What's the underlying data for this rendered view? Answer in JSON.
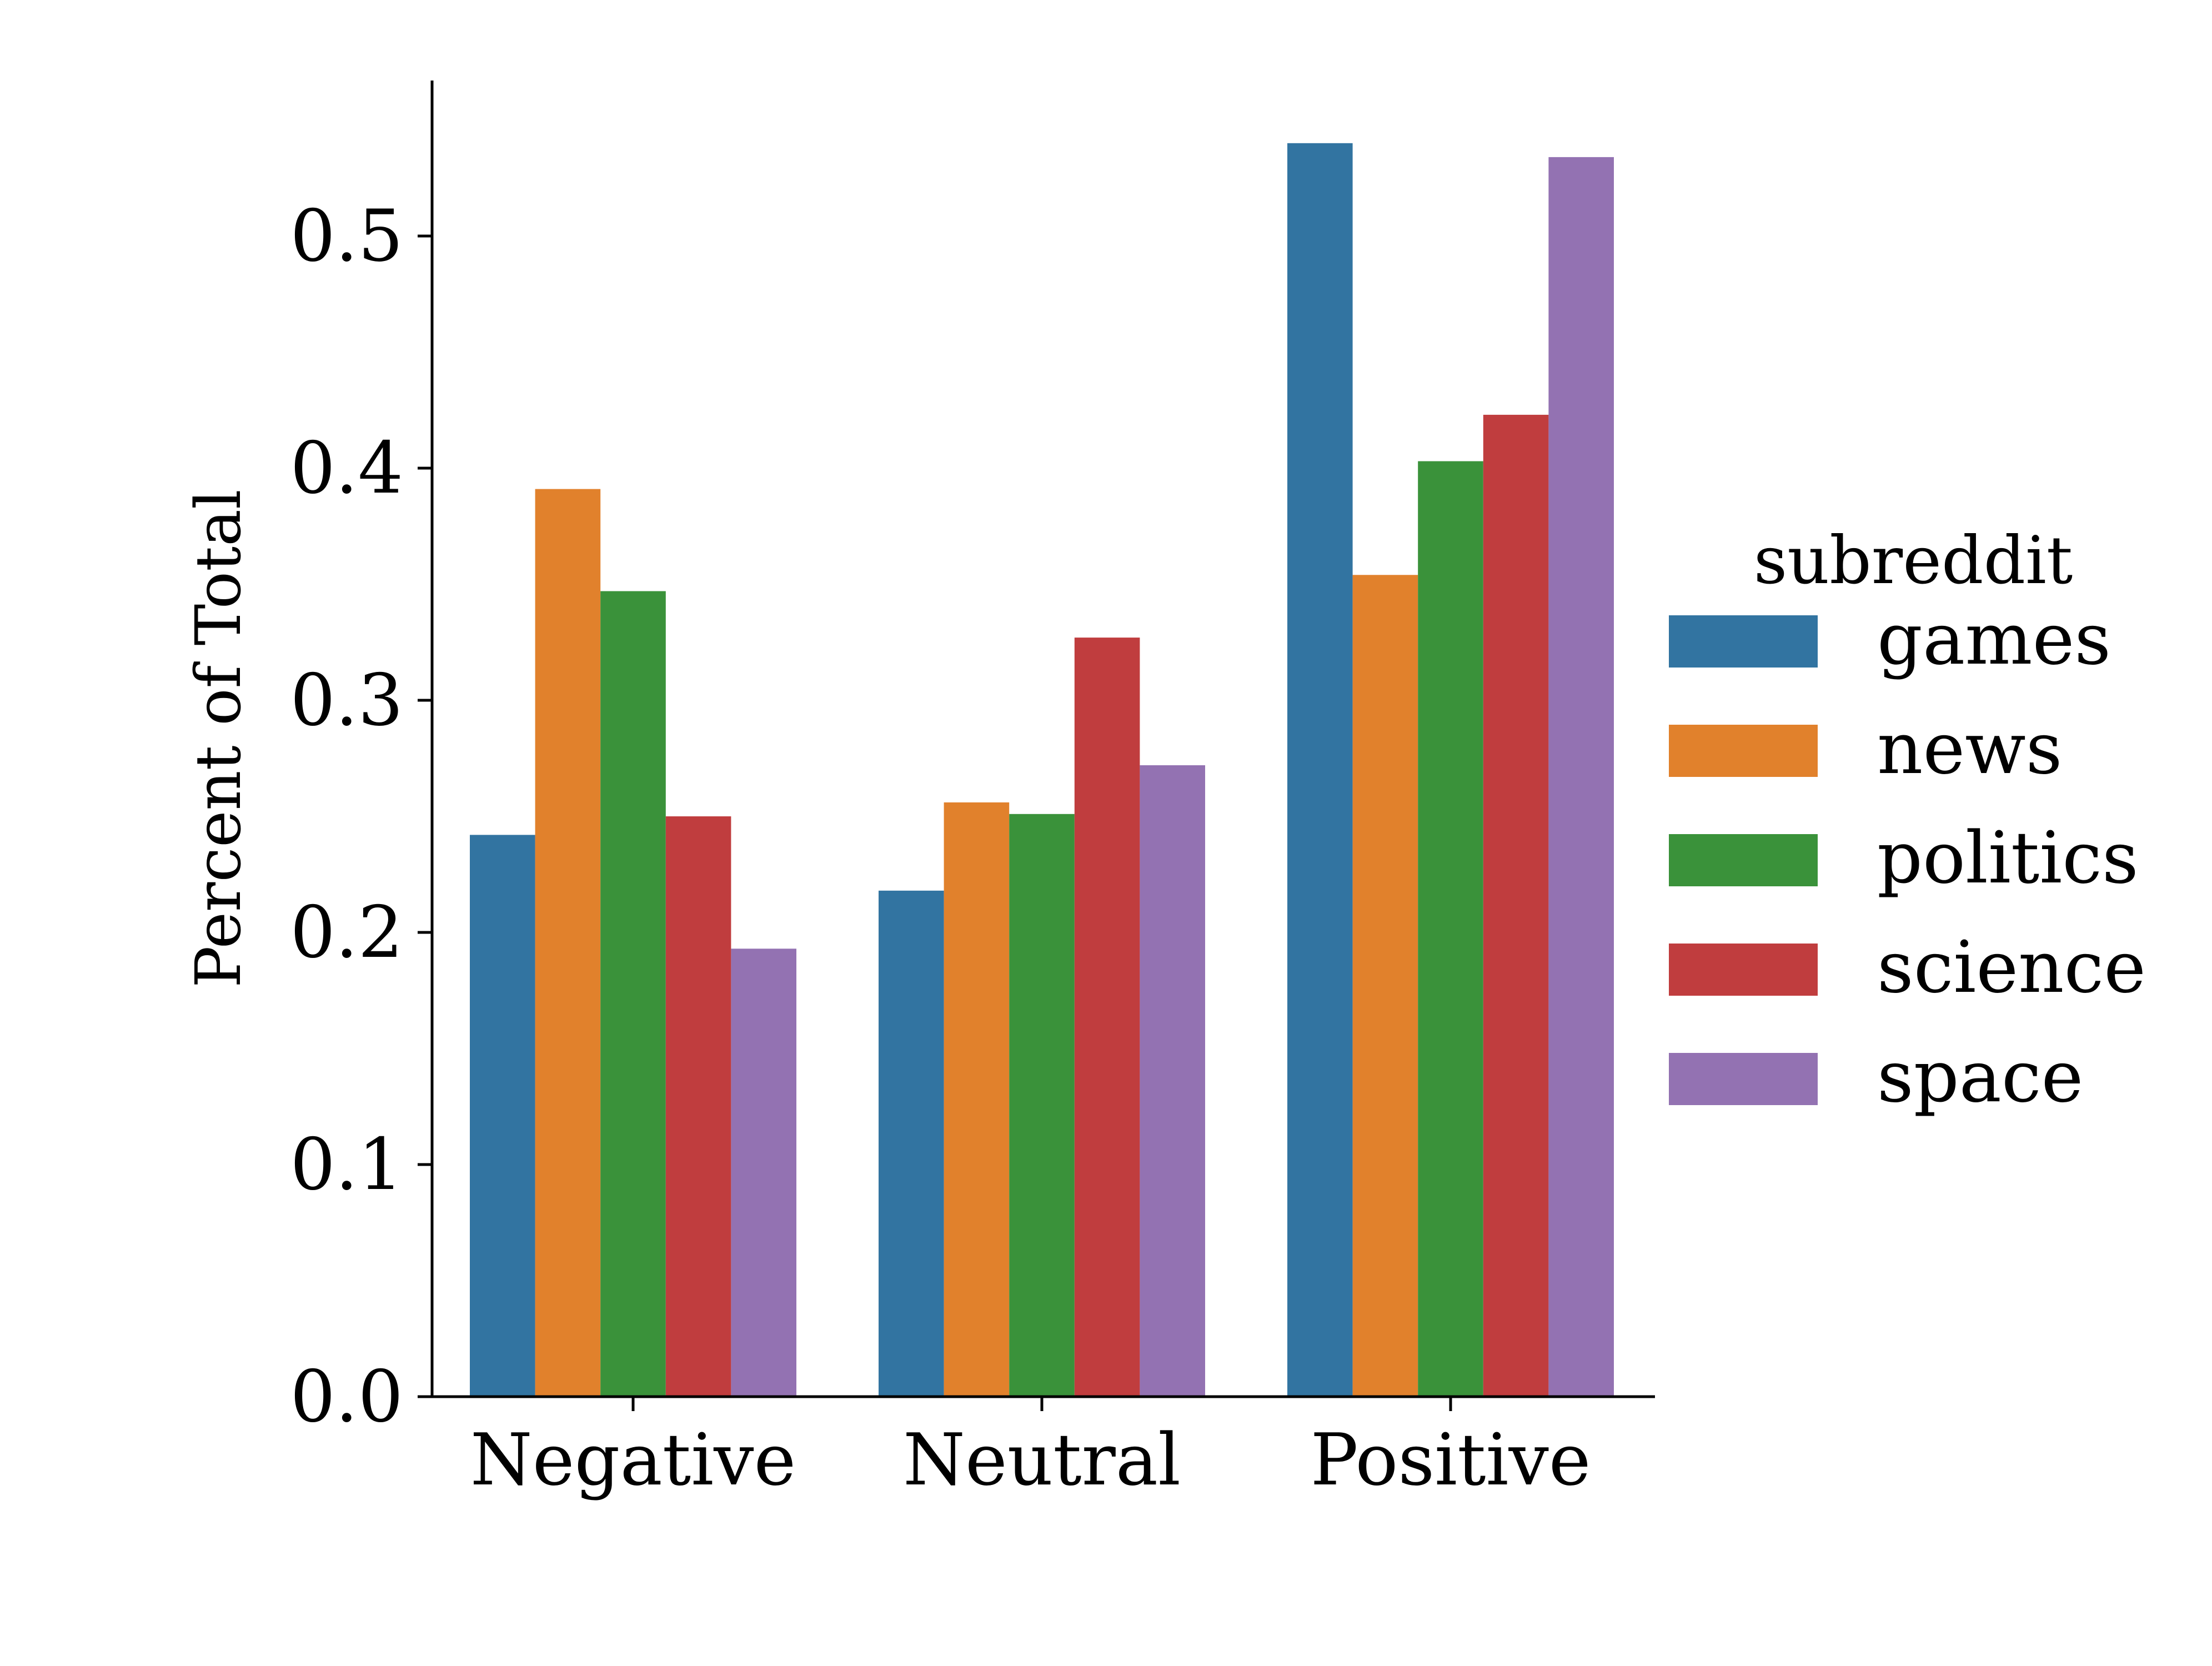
{
  "chart_data": {
    "type": "bar",
    "title": "",
    "xlabel": "",
    "ylabel": "Percent of Total",
    "categories": [
      "Negative",
      "Neutral",
      "Positive"
    ],
    "ylim": [
      0,
      0.567
    ],
    "yticks": [
      0.0,
      0.1,
      0.2,
      0.3,
      0.4,
      0.5
    ],
    "ytick_labels": [
      "0.0",
      "0.1",
      "0.2",
      "0.3",
      "0.4",
      "0.5"
    ],
    "grid": false,
    "legend": {
      "title": "subreddit",
      "placement": "right"
    },
    "series": [
      {
        "name": "games",
        "color": "#3274a1",
        "values": [
          0.242,
          0.218,
          0.54
        ]
      },
      {
        "name": "news",
        "color": "#e1812c",
        "values": [
          0.391,
          0.256,
          0.354
        ]
      },
      {
        "name": "politics",
        "color": "#3a923a",
        "values": [
          0.347,
          0.251,
          0.403
        ]
      },
      {
        "name": "science",
        "color": "#c03d3e",
        "values": [
          0.25,
          0.327,
          0.423
        ]
      },
      {
        "name": "space",
        "color": "#9372b2",
        "values": [
          0.193,
          0.272,
          0.534
        ]
      }
    ]
  }
}
